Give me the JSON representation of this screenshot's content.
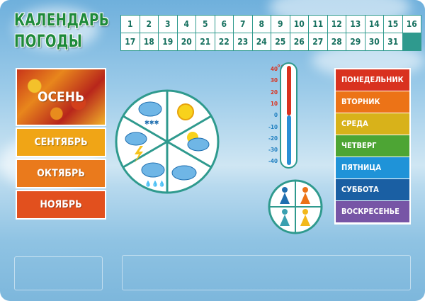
{
  "title": {
    "line1": "КАЛЕНДАРЬ",
    "line2": "ПОГОДЫ"
  },
  "dates": [
    "1",
    "2",
    "3",
    "4",
    "5",
    "6",
    "7",
    "8",
    "9",
    "10",
    "11",
    "12",
    "13",
    "14",
    "15",
    "16",
    "17",
    "18",
    "19",
    "20",
    "21",
    "22",
    "23",
    "24",
    "25",
    "26",
    "27",
    "28",
    "29",
    "30",
    "31"
  ],
  "season": {
    "label": "ОСЕНЬ",
    "months": [
      {
        "label": "СЕНТЯБРЬ",
        "color": "#f0a516"
      },
      {
        "label": "ОКТЯБРЬ",
        "color": "#ea7a1c"
      },
      {
        "label": "НОЯБРЬ",
        "color": "#e2501e"
      }
    ]
  },
  "weather_wheel": [
    "snow-cloud-icon",
    "sun-icon",
    "sun-cloud-icon",
    "cloud-icon",
    "rain-cloud-icon",
    "thunderstorm-icon"
  ],
  "thermometer": {
    "unit": "°C",
    "scale": [
      "40",
      "30",
      "20",
      "10",
      "0",
      "-10",
      "-20",
      "-30",
      "-40"
    ]
  },
  "people": [
    "blue-person-icon",
    "orange-person-icon",
    "teal-person-icon",
    "yellow-person-icon"
  ],
  "days": [
    {
      "label": "ПОНЕДЕЛЬНИК",
      "color": "#d9321f"
    },
    {
      "label": "ВТОРНИК",
      "color": "#ec7317"
    },
    {
      "label": "СРЕДА",
      "color": "#d8b21a"
    },
    {
      "label": "ЧЕТВЕРГ",
      "color": "#4da534"
    },
    {
      "label": "ПЯТНИЦА",
      "color": "#1f93d8"
    },
    {
      "label": "СУББОТА",
      "color": "#1a5fa3"
    },
    {
      "label": "ВОСКРЕСЕНЬЕ",
      "color": "#7755a6"
    }
  ]
}
